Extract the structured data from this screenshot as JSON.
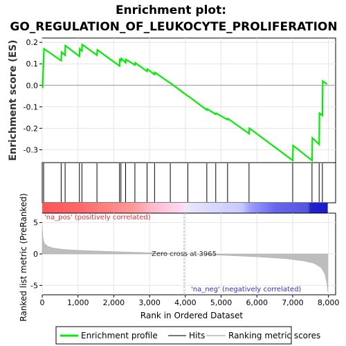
{
  "chart_data": {
    "type": "line",
    "title_line1": "Enrichment plot:",
    "title_line2": "GO_REGULATION_OF_LEUKOCYTE_PROLIFERATION",
    "xlabel": "Rank in Ordered Dataset",
    "xlim": [
      0,
      8200
    ],
    "x_ticks": [
      0,
      1000,
      2000,
      3000,
      4000,
      5000,
      6000,
      7000,
      8000
    ],
    "x_tick_labels": [
      "0",
      "1,000",
      "2,000",
      "3,000",
      "4,000",
      "5,000",
      "6,000",
      "7,000",
      "8,000"
    ],
    "es_panel": {
      "ylabel": "Enrichment score (ES)",
      "ylim": [
        -0.36,
        0.22
      ],
      "y_ticks": [
        0.2,
        0.1,
        0.0,
        -0.1,
        -0.2,
        -0.3
      ],
      "y_tick_labels": [
        "0.2",
        "0.1",
        "0.0",
        "-0.1",
        "-0.2",
        "-0.3"
      ],
      "series": [
        {
          "name": "Enrichment profile",
          "color": "#00ee00",
          "x": [
            0,
            10,
            50,
            530,
            540,
            640,
            645,
            1040,
            1050,
            1110,
            1115,
            1530,
            1540,
            2160,
            2170,
            2200,
            2210,
            2330,
            2340,
            2590,
            2600,
            2930,
            2940,
            3140,
            3150,
            3580,
            3590,
            4070,
            4080,
            4600,
            4610,
            4850,
            4860,
            5180,
            5190,
            5780,
            5790,
            7000,
            7010,
            7540,
            7550,
            7740,
            7750,
            7830,
            7840,
            7960
          ],
          "y": [
            -0.01,
            -0.01,
            0.17,
            0.115,
            0.155,
            0.14,
            0.185,
            0.135,
            0.17,
            0.16,
            0.19,
            0.14,
            0.165,
            0.09,
            0.12,
            0.115,
            0.125,
            0.105,
            0.12,
            0.095,
            0.105,
            0.065,
            0.075,
            0.05,
            0.06,
            0.01,
            0.01,
            -0.05,
            -0.05,
            -0.115,
            -0.11,
            -0.135,
            -0.13,
            -0.16,
            -0.155,
            -0.225,
            -0.2,
            -0.35,
            -0.28,
            -0.35,
            -0.245,
            -0.275,
            -0.13,
            -0.14,
            0.02,
            0.005
          ]
        }
      ]
    },
    "hits": [
      40,
      530,
      640,
      1040,
      1110,
      1530,
      2160,
      2200,
      2330,
      2590,
      2930,
      3140,
      3580,
      4070,
      4600,
      4850,
      5180,
      5780,
      7000,
      7540,
      7740,
      7830
    ],
    "rank_panel": {
      "ylabel": "Ranked list metric (PreRanked)",
      "ylim": [
        -6.5,
        6.5
      ],
      "y_ticks": [
        5,
        0,
        -5
      ],
      "y_tick_labels": [
        "5",
        "0",
        "-5"
      ],
      "zero_cross": 3965,
      "zero_cross_label": "Zero cross at 3965",
      "pos_label": "'na_pos' (positively correlated)",
      "neg_label": "'na_neg' (negatively correlated)",
      "metric_x": [
        0,
        20,
        60,
        150,
        300,
        600,
        1000,
        2000,
        3000,
        3965,
        5000,
        6000,
        6800,
        7300,
        7600,
        7800,
        7900,
        7960,
        7980
      ],
      "metric_y": [
        4.5,
        2.6,
        1.7,
        1.25,
        0.95,
        0.72,
        0.58,
        0.38,
        0.2,
        0.0,
        -0.2,
        -0.45,
        -0.75,
        -1.1,
        -1.5,
        -2.2,
        -3.2,
        -4.8,
        -6.0
      ]
    },
    "legend": [
      {
        "label": "Enrichment profile",
        "color": "#00ee00"
      },
      {
        "label": "Hits",
        "color": "#000000"
      },
      {
        "label": "Ranking metric scores",
        "color": "#c8c8c8"
      }
    ]
  }
}
